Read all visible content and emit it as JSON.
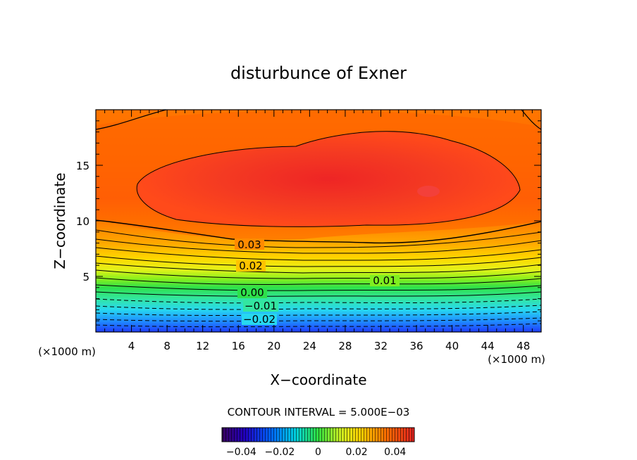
{
  "chart_data": {
    "type": "contour",
    "title": "disturbunce of Exner",
    "xlabel": "X−coordinate",
    "ylabel": "Z−coordinate",
    "x_unit": "(×1000 m)",
    "y_unit": "(×1000 m)",
    "xlim": [
      0,
      50
    ],
    "ylim": [
      0,
      20
    ],
    "xticks": [
      "4",
      "8",
      "12",
      "16",
      "20",
      "24",
      "28",
      "32",
      "36",
      "40",
      "44",
      "48"
    ],
    "yticks": [
      "5",
      "10",
      "15"
    ],
    "contour_interval_label": "CONTOUR INTERVAL = 5.000E−03",
    "contour_labels": [
      "0.03",
      "0.02",
      "0.01",
      "0.00",
      "−0.01",
      "−0.02"
    ],
    "colorbar": {
      "min": -0.05,
      "max": 0.05,
      "ticks": [
        "−0.04",
        "−0.02",
        "0",
        "0.02",
        "0.04"
      ]
    },
    "field_description_levels": {
      "surface_min": -0.045,
      "core_max": 0.045,
      "core_center_xz": [
        32,
        12.5
      ]
    }
  }
}
